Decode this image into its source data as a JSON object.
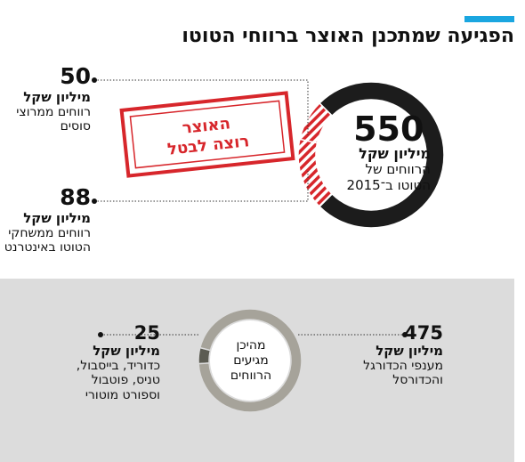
{
  "header": {
    "title": "הפגיעה שמתכנן האוצר ברווחי הטוטו"
  },
  "stamp": {
    "line1": "האוצר",
    "line2": "רוצה לבטל"
  },
  "colors": {
    "accent": "#1aa6e0",
    "dark_segment": "#1c1c1c",
    "stamp_red": "#d7262b",
    "ring_gray": "#a6a39a",
    "ring_dark": "#5b5b52",
    "panel_gray": "#dcdcdc"
  },
  "chart_data": [
    {
      "type": "pie",
      "title": "",
      "total": {
        "value": "550",
        "unit": "מיליון שקל",
        "line1": "הרווחים של",
        "line2": "הטוטו ב־2015"
      },
      "slices": [
        {
          "value": 50,
          "value_label": "50",
          "unit": "מיליון שקל",
          "line1": "רווחים ממרוצי",
          "line2": "סוסים",
          "style": "red-hatched"
        },
        {
          "value": 88,
          "value_label": "88",
          "unit": "מיליון שקל",
          "line1": "רווחים ממשחקי",
          "line2": "הטוטו באינטרנט",
          "style": "red-hatched"
        },
        {
          "value": 412,
          "style": "dark"
        }
      ]
    },
    {
      "type": "pie",
      "title": "",
      "center": {
        "line1": "מהיכן",
        "line2": "מגיעים",
        "line3": "הרווחים"
      },
      "slices": [
        {
          "value": 475,
          "value_label": "475",
          "unit": "מיליון שקל",
          "line1": "מענפי הכדורגל",
          "line2": "והכדורסל",
          "color": "#a6a39a"
        },
        {
          "value": 25,
          "value_label": "25",
          "unit": "מיליון שקל",
          "line1": "כדוריד, בייסבול,",
          "line2": "טניס, פוטבול",
          "line3": "וספורט מוטורי",
          "color": "#5b5b52"
        }
      ]
    }
  ]
}
